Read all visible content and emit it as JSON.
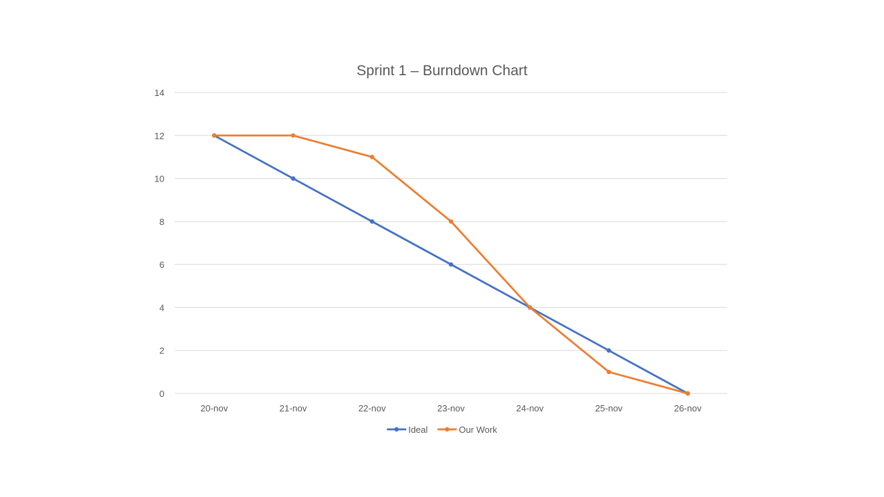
{
  "chart_data": {
    "type": "line",
    "title": "Sprint 1 – Burndown Chart",
    "xlabel": "",
    "ylabel": "",
    "categories": [
      "20-nov",
      "21-nov",
      "22-nov",
      "23-nov",
      "24-nov",
      "25-nov",
      "26-nov"
    ],
    "ylim": [
      0,
      14
    ],
    "yticks": [
      0,
      2,
      4,
      6,
      8,
      10,
      12,
      14
    ],
    "grid": true,
    "legend_position": "bottom",
    "series": [
      {
        "name": "Ideal",
        "color": "#4472c4",
        "values": [
          12,
          10,
          8,
          6,
          4,
          2,
          0
        ]
      },
      {
        "name": "Our Work",
        "color": "#ed7d31",
        "values": [
          12,
          12,
          11,
          8,
          4,
          1,
          0
        ]
      }
    ]
  }
}
